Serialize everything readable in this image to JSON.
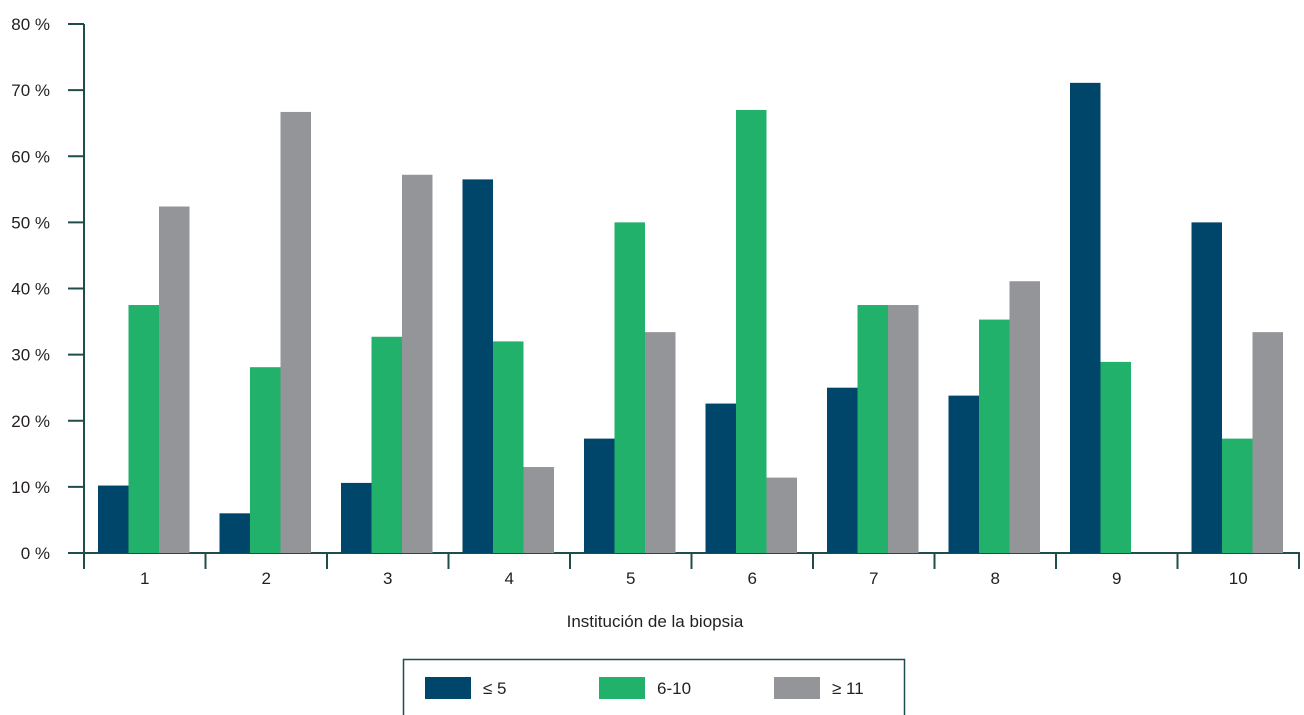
{
  "chart_data": {
    "type": "bar",
    "title": "",
    "xlabel": "Institución de la biopsia",
    "ylabel": "",
    "categories": [
      "1",
      "2",
      "3",
      "4",
      "5",
      "6",
      "7",
      "8",
      "9",
      "10"
    ],
    "series": [
      {
        "name": "≤ 5",
        "color": "#00466a",
        "values": [
          10.2,
          6.0,
          10.6,
          56.5,
          17.3,
          22.6,
          25.0,
          23.8,
          71.1,
          50.0
        ]
      },
      {
        "name": "6-10",
        "color": "#22b16b",
        "values": [
          37.5,
          28.1,
          32.7,
          32.0,
          50.0,
          67.0,
          37.5,
          35.3,
          28.9,
          17.3
        ]
      },
      {
        "name": "≥ 11",
        "color": "#939598",
        "values": [
          52.4,
          66.7,
          57.2,
          13.0,
          33.4,
          11.4,
          37.5,
          41.1,
          0,
          33.4
        ]
      }
    ],
    "ylim": [
      0,
      80
    ],
    "yticks": [
      "0 %",
      "10 %",
      "20 %",
      "30 %",
      "40 %",
      "50 %",
      "60 %",
      "70 %",
      "80 %"
    ],
    "grid": false,
    "legend": "bottom-center",
    "axis_color": "#1f4e4a"
  }
}
